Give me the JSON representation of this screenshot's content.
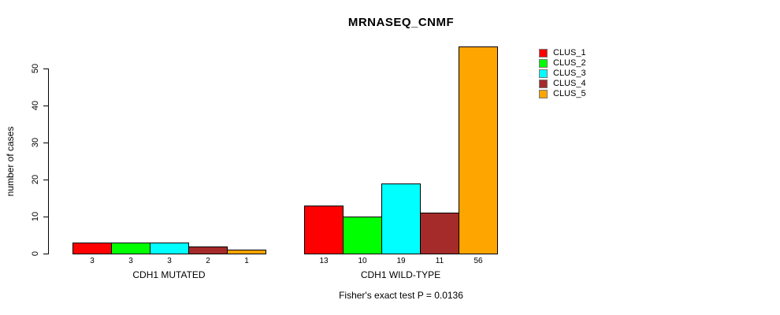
{
  "chart_data": {
    "type": "bar",
    "title": "MRNASEQ_CNMF",
    "ylabel": "number of cases",
    "xlabel": "",
    "categories": [
      "CDH1 MUTATED",
      "CDH1 WILD-TYPE"
    ],
    "series": [
      {
        "name": "CLUS_1",
        "color": "#FF0000",
        "values": [
          3,
          13
        ]
      },
      {
        "name": "CLUS_2",
        "color": "#00FF00",
        "values": [
          3,
          10
        ]
      },
      {
        "name": "CLUS_3",
        "color": "#00FFFF",
        "values": [
          3,
          19
        ]
      },
      {
        "name": "CLUS_4",
        "color": "#A52A2A",
        "values": [
          2,
          11
        ]
      },
      {
        "name": "CLUS_5",
        "color": "#FFA500",
        "values": [
          1,
          56
        ]
      }
    ],
    "yticks": [
      0,
      10,
      20,
      30,
      40,
      50
    ],
    "ylim": [
      0,
      56
    ],
    "grid": false,
    "legend_position": "top-right",
    "bar_value_labels": true,
    "caption": "Fisher's exact test P = 0.0136",
    "axis_color": "#000000",
    "background_color": "#FFFFFF"
  }
}
